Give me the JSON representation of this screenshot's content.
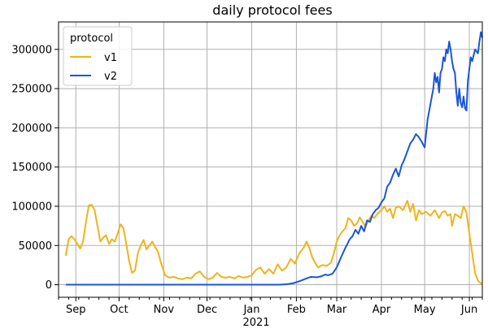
{
  "chart_data": {
    "type": "line",
    "title": "daily protocol fees",
    "xlabel": "",
    "ylabel": "",
    "x_range": [
      "2020-08-20",
      "2021-06-10"
    ],
    "ylim": [
      -16000,
      335000
    ],
    "grid": true,
    "legend_position": "upper-left",
    "legend_title": "protocol",
    "y_ticks": [
      0,
      50000,
      100000,
      150000,
      200000,
      250000,
      300000
    ],
    "y_tick_labels": [
      "0",
      "50000",
      "100000",
      "150000",
      "200000",
      "250000",
      "300000"
    ],
    "x_ticks": [
      "2020-09-01",
      "2020-10-01",
      "2020-11-01",
      "2020-12-01",
      "2021-01-01",
      "2021-02-01",
      "2021-03-01",
      "2021-04-01",
      "2021-05-01",
      "2021-06-01"
    ],
    "x_tick_labels": [
      "Sep",
      "Oct",
      "Nov",
      "Dec",
      "Jan",
      "Feb",
      "Mar",
      "Apr",
      "May",
      "Jun"
    ],
    "x_year_label": "2021",
    "series": [
      {
        "name": "v1",
        "color": "#f0b31a",
        "points": [
          [
            "2020-08-25",
            37000
          ],
          [
            "2020-08-27",
            58000
          ],
          [
            "2020-08-29",
            62000
          ],
          [
            "2020-08-31",
            58000
          ],
          [
            "2020-09-02",
            52000
          ],
          [
            "2020-09-04",
            46000
          ],
          [
            "2020-09-06",
            55000
          ],
          [
            "2020-09-08",
            80000
          ],
          [
            "2020-09-10",
            101000
          ],
          [
            "2020-09-12",
            102000
          ],
          [
            "2020-09-14",
            95000
          ],
          [
            "2020-09-16",
            75000
          ],
          [
            "2020-09-18",
            55000
          ],
          [
            "2020-09-20",
            60000
          ],
          [
            "2020-09-22",
            63000
          ],
          [
            "2020-09-24",
            52000
          ],
          [
            "2020-09-26",
            58000
          ],
          [
            "2020-09-28",
            55000
          ],
          [
            "2020-09-30",
            65000
          ],
          [
            "2020-10-02",
            77000
          ],
          [
            "2020-10-04",
            72000
          ],
          [
            "2020-10-06",
            52000
          ],
          [
            "2020-10-08",
            30000
          ],
          [
            "2020-10-10",
            15000
          ],
          [
            "2020-10-12",
            18000
          ],
          [
            "2020-10-14",
            40000
          ],
          [
            "2020-10-16",
            50000
          ],
          [
            "2020-10-18",
            57000
          ],
          [
            "2020-10-20",
            45000
          ],
          [
            "2020-10-22",
            50000
          ],
          [
            "2020-10-24",
            55000
          ],
          [
            "2020-10-26",
            48000
          ],
          [
            "2020-10-28",
            42000
          ],
          [
            "2020-10-30",
            28000
          ],
          [
            "2020-11-02",
            12000
          ],
          [
            "2020-11-05",
            9000
          ],
          [
            "2020-11-08",
            10000
          ],
          [
            "2020-11-11",
            8000
          ],
          [
            "2020-11-14",
            7000
          ],
          [
            "2020-11-17",
            9000
          ],
          [
            "2020-11-20",
            8000
          ],
          [
            "2020-11-23",
            14000
          ],
          [
            "2020-11-26",
            17000
          ],
          [
            "2020-11-29",
            10000
          ],
          [
            "2020-12-02",
            7000
          ],
          [
            "2020-12-05",
            9000
          ],
          [
            "2020-12-08",
            15000
          ],
          [
            "2020-12-11",
            10000
          ],
          [
            "2020-12-14",
            9000
          ],
          [
            "2020-12-17",
            10000
          ],
          [
            "2020-12-20",
            8000
          ],
          [
            "2020-12-23",
            11000
          ],
          [
            "2020-12-26",
            9000
          ],
          [
            "2020-12-29",
            10000
          ],
          [
            "2021-01-01",
            12000
          ],
          [
            "2021-01-04",
            19000
          ],
          [
            "2021-01-07",
            22000
          ],
          [
            "2021-01-10",
            14000
          ],
          [
            "2021-01-13",
            20000
          ],
          [
            "2021-01-16",
            14000
          ],
          [
            "2021-01-19",
            26000
          ],
          [
            "2021-01-22",
            18000
          ],
          [
            "2021-01-25",
            22000
          ],
          [
            "2021-01-28",
            33000
          ],
          [
            "2021-01-31",
            27000
          ],
          [
            "2021-02-03",
            40000
          ],
          [
            "2021-02-06",
            47000
          ],
          [
            "2021-02-08",
            55000
          ],
          [
            "2021-02-10",
            47000
          ],
          [
            "2021-02-12",
            35000
          ],
          [
            "2021-02-14",
            28000
          ],
          [
            "2021-02-16",
            22000
          ],
          [
            "2021-02-19",
            25000
          ],
          [
            "2021-02-22",
            24000
          ],
          [
            "2021-02-25",
            28000
          ],
          [
            "2021-02-27",
            40000
          ],
          [
            "2021-03-01",
            55000
          ],
          [
            "2021-03-03",
            63000
          ],
          [
            "2021-03-05",
            68000
          ],
          [
            "2021-03-07",
            72000
          ],
          [
            "2021-03-09",
            85000
          ],
          [
            "2021-03-11",
            82000
          ],
          [
            "2021-03-13",
            75000
          ],
          [
            "2021-03-15",
            78000
          ],
          [
            "2021-03-17",
            86000
          ],
          [
            "2021-03-19",
            80000
          ],
          [
            "2021-03-21",
            74000
          ],
          [
            "2021-03-23",
            82000
          ],
          [
            "2021-03-25",
            88000
          ],
          [
            "2021-03-27",
            85000
          ],
          [
            "2021-03-29",
            90000
          ],
          [
            "2021-04-01",
            95000
          ],
          [
            "2021-04-03",
            100000
          ],
          [
            "2021-04-05",
            93000
          ],
          [
            "2021-04-07",
            97000
          ],
          [
            "2021-04-09",
            85000
          ],
          [
            "2021-04-11",
            98000
          ],
          [
            "2021-04-13",
            100000
          ],
          [
            "2021-04-16",
            95000
          ],
          [
            "2021-04-19",
            107000
          ],
          [
            "2021-04-21",
            93000
          ],
          [
            "2021-04-23",
            103000
          ],
          [
            "2021-04-25",
            82000
          ],
          [
            "2021-04-27",
            95000
          ],
          [
            "2021-04-29",
            90000
          ],
          [
            "2021-05-02",
            93000
          ],
          [
            "2021-05-05",
            88000
          ],
          [
            "2021-05-08",
            95000
          ],
          [
            "2021-05-11",
            85000
          ],
          [
            "2021-05-13",
            92000
          ],
          [
            "2021-05-15",
            94000
          ],
          [
            "2021-05-17",
            88000
          ],
          [
            "2021-05-19",
            90000
          ],
          [
            "2021-05-20",
            75000
          ],
          [
            "2021-05-22",
            90000
          ],
          [
            "2021-05-24",
            88000
          ],
          [
            "2021-05-26",
            85000
          ],
          [
            "2021-05-28",
            100000
          ],
          [
            "2021-05-30",
            92000
          ],
          [
            "2021-06-01",
            65000
          ],
          [
            "2021-06-03",
            40000
          ],
          [
            "2021-06-05",
            15000
          ],
          [
            "2021-06-07",
            5000
          ],
          [
            "2021-06-09",
            2000
          ],
          [
            "2021-06-10",
            1000
          ]
        ]
      },
      {
        "name": "v2",
        "color": "#1a56db",
        "points": [
          [
            "2020-08-25",
            0
          ],
          [
            "2020-10-01",
            0
          ],
          [
            "2020-11-01",
            0
          ],
          [
            "2020-12-01",
            0
          ],
          [
            "2021-01-01",
            0
          ],
          [
            "2021-01-20",
            0
          ],
          [
            "2021-01-25",
            500
          ],
          [
            "2021-01-30",
            2000
          ],
          [
            "2021-02-04",
            5000
          ],
          [
            "2021-02-08",
            8000
          ],
          [
            "2021-02-11",
            10000
          ],
          [
            "2021-02-15",
            9500
          ],
          [
            "2021-02-18",
            10500
          ],
          [
            "2021-02-21",
            13000
          ],
          [
            "2021-02-23",
            12000
          ],
          [
            "2021-02-26",
            14000
          ],
          [
            "2021-03-01",
            22000
          ],
          [
            "2021-03-04",
            35000
          ],
          [
            "2021-03-07",
            47000
          ],
          [
            "2021-03-10",
            58000
          ],
          [
            "2021-03-12",
            62000
          ],
          [
            "2021-03-14",
            70000
          ],
          [
            "2021-03-16",
            65000
          ],
          [
            "2021-03-18",
            75000
          ],
          [
            "2021-03-20",
            68000
          ],
          [
            "2021-03-22",
            82000
          ],
          [
            "2021-03-24",
            80000
          ],
          [
            "2021-03-26",
            90000
          ],
          [
            "2021-03-28",
            95000
          ],
          [
            "2021-03-30",
            98000
          ],
          [
            "2021-04-01",
            105000
          ],
          [
            "2021-04-03",
            110000
          ],
          [
            "2021-04-05",
            125000
          ],
          [
            "2021-04-07",
            130000
          ],
          [
            "2021-04-09",
            140000
          ],
          [
            "2021-04-11",
            148000
          ],
          [
            "2021-04-13",
            138000
          ],
          [
            "2021-04-15",
            152000
          ],
          [
            "2021-04-17",
            160000
          ],
          [
            "2021-04-19",
            170000
          ],
          [
            "2021-04-21",
            180000
          ],
          [
            "2021-04-23",
            185000
          ],
          [
            "2021-04-25",
            192000
          ],
          [
            "2021-04-27",
            188000
          ],
          [
            "2021-04-29",
            182000
          ],
          [
            "2021-05-01",
            175000
          ],
          [
            "2021-05-03",
            210000
          ],
          [
            "2021-05-05",
            230000
          ],
          [
            "2021-05-07",
            250000
          ],
          [
            "2021-05-08",
            270000
          ],
          [
            "2021-05-09",
            258000
          ],
          [
            "2021-05-10",
            265000
          ],
          [
            "2021-05-11",
            245000
          ],
          [
            "2021-05-12",
            270000
          ],
          [
            "2021-05-13",
            275000
          ],
          [
            "2021-05-14",
            290000
          ],
          [
            "2021-05-15",
            285000
          ],
          [
            "2021-05-16",
            300000
          ],
          [
            "2021-05-17",
            295000
          ],
          [
            "2021-05-18",
            310000
          ],
          [
            "2021-05-19",
            300000
          ],
          [
            "2021-05-20",
            285000
          ],
          [
            "2021-05-21",
            275000
          ],
          [
            "2021-05-22",
            270000
          ],
          [
            "2021-05-23",
            245000
          ],
          [
            "2021-05-24",
            228000
          ],
          [
            "2021-05-25",
            250000
          ],
          [
            "2021-05-26",
            232000
          ],
          [
            "2021-05-27",
            226000
          ],
          [
            "2021-05-28",
            240000
          ],
          [
            "2021-05-29",
            225000
          ],
          [
            "2021-05-30",
            222000
          ],
          [
            "2021-05-31",
            260000
          ],
          [
            "2021-06-01",
            275000
          ],
          [
            "2021-06-02",
            290000
          ],
          [
            "2021-06-03",
            285000
          ],
          [
            "2021-06-05",
            300000
          ],
          [
            "2021-06-07",
            295000
          ],
          [
            "2021-06-08",
            310000
          ],
          [
            "2021-06-09",
            322000
          ],
          [
            "2021-06-10",
            315000
          ]
        ]
      }
    ]
  }
}
